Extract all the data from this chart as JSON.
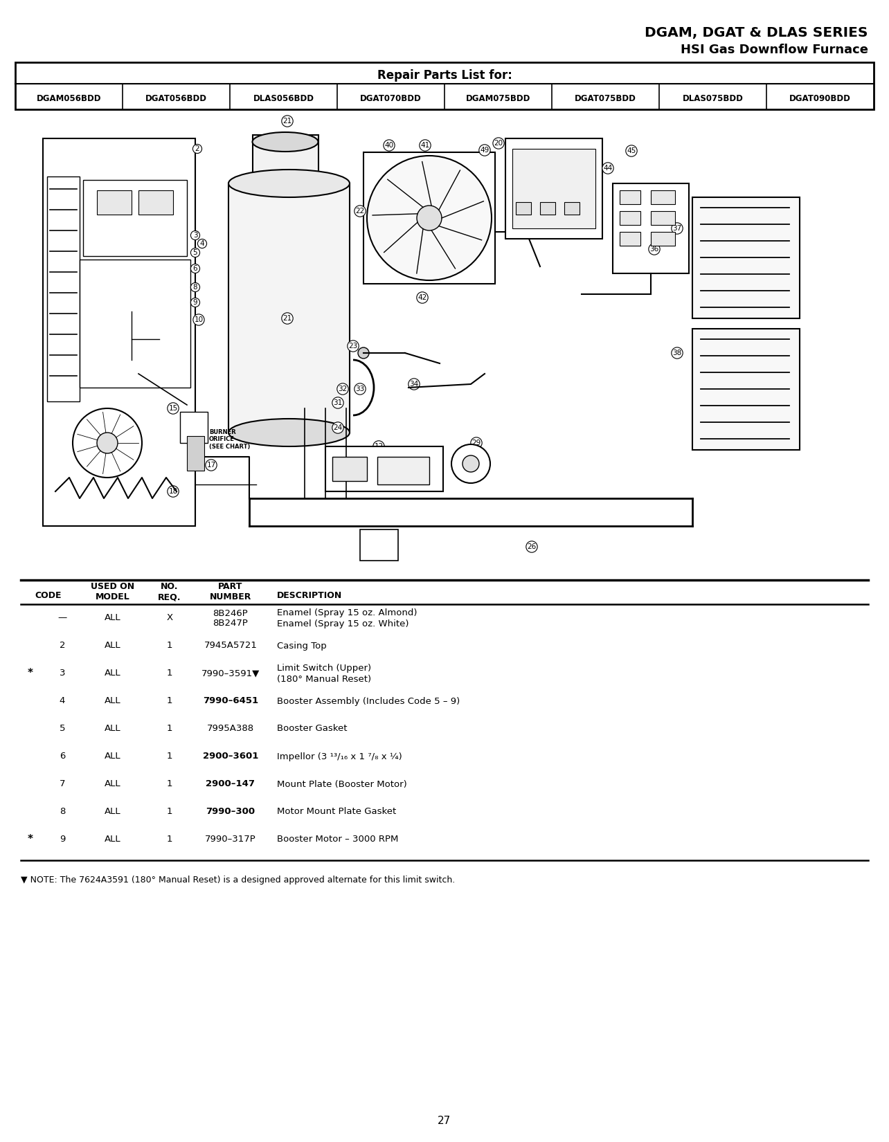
{
  "title_line1": "DGAM, DGAT & DLAS SERIES",
  "title_line2": "HSI Gas Downflow Furnace",
  "repair_parts_title": "Repair Parts List for:",
  "model_codes": [
    "DGAM056BDD",
    "DGAT056BDD",
    "DLAS056BDD",
    "DGAT070BDD",
    "DGAM075BDD",
    "DGAT075BDD",
    "DLAS075BDD",
    "DGAT090BDD"
  ],
  "table_rows": [
    [
      "—",
      "ALL",
      "X",
      "8B246P\n8B247P",
      "Enamel (Spray 15 oz. Almond)\nEnamel (Spray 15 oz. White)",
      false
    ],
    [
      "2",
      "ALL",
      "1",
      "7945A5721",
      "Casing Top",
      false
    ],
    [
      "3",
      "ALL",
      "1",
      "7990–3591▼",
      "Limit Switch (Upper)\n(180° Manual Reset)",
      true
    ],
    [
      "4",
      "ALL",
      "1",
      "7990–6451",
      "Booster Assembly (Includes Code 5 – 9)",
      false
    ],
    [
      "5",
      "ALL",
      "1",
      "7995A388",
      "Booster Gasket",
      false
    ],
    [
      "6",
      "ALL",
      "1",
      "2900–3601",
      "Impellor (3 ¹³/₁₆ x 1 ⁷/₈ x ¼)",
      false
    ],
    [
      "7",
      "ALL",
      "1",
      "2900–147",
      "Mount Plate (Booster Motor)",
      false
    ],
    [
      "8",
      "ALL",
      "1",
      "7990–300",
      "Motor Mount Plate Gasket",
      false
    ],
    [
      "9",
      "ALL",
      "1",
      "7990–317P",
      "Booster Motor – 3000 RPM",
      true
    ]
  ],
  "bold_part_numbers": [
    "2900–3601",
    "7990–300",
    "7990–6451",
    "2900–147"
  ],
  "star_rows": [
    2,
    8
  ],
  "note_text": "▼ NOTE: The 7624A3591 (180° Manual Reset) is a designed approved alternate for this limit switch.",
  "page_number": "27",
  "bg_color": "#ffffff",
  "text_color": "#000000"
}
